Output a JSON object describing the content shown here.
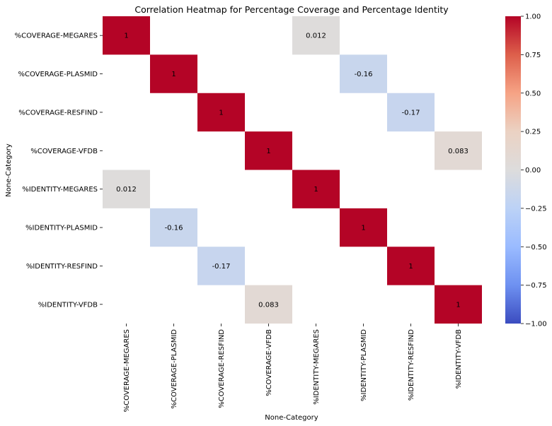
{
  "chart_data": {
    "type": "heatmap",
    "title": "Correlation Heatmap for Percentage Coverage and Percentage Identity",
    "xlabel": "None-Category",
    "ylabel": "None-Category",
    "categories": [
      "%COVERAGE-MEGARES",
      "%COVERAGE-PLASMID",
      "%COVERAGE-RESFIND",
      "%COVERAGE-VFDB",
      "%IDENTITY-MEGARES",
      "%IDENTITY-PLASMID",
      "%IDENTITY-RESFIND",
      "%IDENTITY-VFDB"
    ],
    "cells": [
      {
        "row": 0,
        "col": 0,
        "value": 1,
        "label": "1"
      },
      {
        "row": 0,
        "col": 4,
        "value": 0.012,
        "label": "0.012"
      },
      {
        "row": 1,
        "col": 1,
        "value": 1,
        "label": "1"
      },
      {
        "row": 1,
        "col": 5,
        "value": -0.16,
        "label": "-0.16"
      },
      {
        "row": 2,
        "col": 2,
        "value": 1,
        "label": "1"
      },
      {
        "row": 2,
        "col": 6,
        "value": -0.17,
        "label": "-0.17"
      },
      {
        "row": 3,
        "col": 3,
        "value": 1,
        "label": "1"
      },
      {
        "row": 3,
        "col": 7,
        "value": 0.083,
        "label": "0.083"
      },
      {
        "row": 4,
        "col": 0,
        "value": 0.012,
        "label": "0.012"
      },
      {
        "row": 4,
        "col": 4,
        "value": 1,
        "label": "1"
      },
      {
        "row": 5,
        "col": 1,
        "value": -0.16,
        "label": "-0.16"
      },
      {
        "row": 5,
        "col": 5,
        "value": 1,
        "label": "1"
      },
      {
        "row": 6,
        "col": 2,
        "value": -0.17,
        "label": "-0.17"
      },
      {
        "row": 6,
        "col": 6,
        "value": 1,
        "label": "1"
      },
      {
        "row": 7,
        "col": 3,
        "value": 0.083,
        "label": "0.083"
      },
      {
        "row": 7,
        "col": 7,
        "value": 1,
        "label": "1"
      }
    ],
    "colorbar": {
      "range": [
        -1,
        1
      ],
      "ticks": [
        1.0,
        0.75,
        0.5,
        0.25,
        0.0,
        -0.25,
        -0.5,
        -0.75,
        -1.0
      ],
      "tick_labels": [
        "1.00",
        "0.75",
        "0.50",
        "0.25",
        "0.00",
        "−0.25",
        "−0.50",
        "−0.75",
        "−1.00"
      ],
      "colormap": "coolwarm",
      "colors": [
        "#3b4cc0",
        "#dddcdc",
        "#b40426"
      ]
    },
    "grid": false,
    "legend": "right"
  }
}
